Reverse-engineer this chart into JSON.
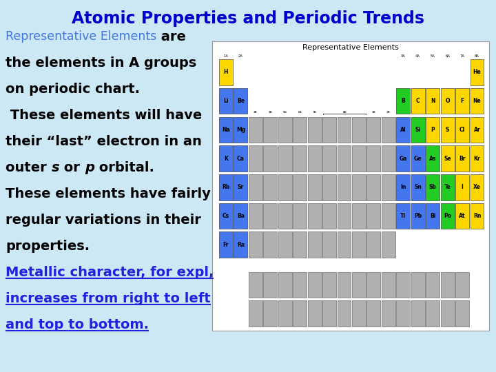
{
  "title": "Atomic Properties and Periodic Trends",
  "title_color": "#0000CC",
  "title_fontsize": 17,
  "background_color": "#cce8f4",
  "text_lines": [
    {
      "parts": [
        {
          "text": "Representative Elements",
          "color": "#4477DD",
          "weight": "normal",
          "style": "normal",
          "size": 12.5
        },
        {
          "text": " are",
          "color": "#000000",
          "weight": "bold",
          "style": "normal",
          "size": 14
        }
      ]
    },
    {
      "parts": [
        {
          "text": "the elements in A groups",
          "color": "#000000",
          "weight": "bold",
          "style": "normal",
          "size": 14
        }
      ]
    },
    {
      "parts": [
        {
          "text": "on periodic chart.",
          "color": "#000000",
          "weight": "bold",
          "style": "normal",
          "size": 14
        }
      ]
    },
    {
      "parts": [
        {
          "text": " These elements will have",
          "color": "#000000",
          "weight": "bold",
          "style": "normal",
          "size": 14
        }
      ]
    },
    {
      "parts": [
        {
          "text": "their “last” electron in an",
          "color": "#000000",
          "weight": "bold",
          "style": "normal",
          "size": 14
        }
      ]
    },
    {
      "parts": [
        {
          "text": "outer ",
          "color": "#000000",
          "weight": "bold",
          "style": "normal",
          "size": 14
        },
        {
          "text": "s",
          "color": "#000000",
          "weight": "bold",
          "style": "italic",
          "size": 14
        },
        {
          "text": " or ",
          "color": "#000000",
          "weight": "bold",
          "style": "normal",
          "size": 14
        },
        {
          "text": "p",
          "color": "#000000",
          "weight": "bold",
          "style": "italic",
          "size": 14
        },
        {
          "text": " orbital.",
          "color": "#000000",
          "weight": "bold",
          "style": "normal",
          "size": 14
        }
      ]
    },
    {
      "parts": [
        {
          "text": "These elements have fairly",
          "color": "#000000",
          "weight": "bold",
          "style": "normal",
          "size": 14
        }
      ]
    },
    {
      "parts": [
        {
          "text": "regular variations in their",
          "color": "#000000",
          "weight": "bold",
          "style": "normal",
          "size": 14
        }
      ]
    },
    {
      "parts": [
        {
          "text": "properties.",
          "color": "#000000",
          "weight": "bold",
          "style": "normal",
          "size": 14
        }
      ]
    },
    {
      "parts": [
        {
          "text": "Metallic character, for expl,",
          "color": "#2222DD",
          "weight": "bold",
          "style": "normal",
          "size": 14,
          "underline": true
        }
      ]
    },
    {
      "parts": [
        {
          "text": "increases from right to left",
          "color": "#2222DD",
          "weight": "bold",
          "style": "normal",
          "size": 14,
          "underline": true
        }
      ]
    },
    {
      "parts": [
        {
          "text": "and top to bottom.",
          "color": "#2222DD",
          "weight": "bold",
          "style": "normal",
          "size": 14,
          "underline": true
        }
      ]
    }
  ],
  "ptable": {
    "title": "Representative Elements",
    "colors": {
      "yellow": "#FFD700",
      "blue": "#4477EE",
      "green": "#22CC22",
      "gray": "#B0B0B0",
      "white": "#FFFFFF"
    },
    "elements": [
      {
        "symbol": "H",
        "row": 0,
        "col": 0,
        "color": "yellow"
      },
      {
        "symbol": "He",
        "row": 0,
        "col": 17,
        "color": "yellow"
      },
      {
        "symbol": "Li",
        "row": 1,
        "col": 0,
        "color": "blue"
      },
      {
        "symbol": "Be",
        "row": 1,
        "col": 1,
        "color": "blue"
      },
      {
        "symbol": "B",
        "row": 1,
        "col": 12,
        "color": "green"
      },
      {
        "symbol": "C",
        "row": 1,
        "col": 13,
        "color": "yellow"
      },
      {
        "symbol": "N",
        "row": 1,
        "col": 14,
        "color": "yellow"
      },
      {
        "symbol": "O",
        "row": 1,
        "col": 15,
        "color": "yellow"
      },
      {
        "symbol": "F",
        "row": 1,
        "col": 16,
        "color": "yellow"
      },
      {
        "symbol": "Ne",
        "row": 1,
        "col": 17,
        "color": "yellow"
      },
      {
        "symbol": "Na",
        "row": 2,
        "col": 0,
        "color": "blue"
      },
      {
        "symbol": "Mg",
        "row": 2,
        "col": 1,
        "color": "blue"
      },
      {
        "symbol": "Al",
        "row": 2,
        "col": 12,
        "color": "blue"
      },
      {
        "symbol": "Si",
        "row": 2,
        "col": 13,
        "color": "green"
      },
      {
        "symbol": "P",
        "row": 2,
        "col": 14,
        "color": "yellow"
      },
      {
        "symbol": "S",
        "row": 2,
        "col": 15,
        "color": "yellow"
      },
      {
        "symbol": "Cl",
        "row": 2,
        "col": 16,
        "color": "yellow"
      },
      {
        "symbol": "Ar",
        "row": 2,
        "col": 17,
        "color": "yellow"
      },
      {
        "symbol": "K",
        "row": 3,
        "col": 0,
        "color": "blue"
      },
      {
        "symbol": "Ca",
        "row": 3,
        "col": 1,
        "color": "blue"
      },
      {
        "symbol": "Ga",
        "row": 3,
        "col": 12,
        "color": "blue"
      },
      {
        "symbol": "Ge",
        "row": 3,
        "col": 13,
        "color": "blue"
      },
      {
        "symbol": "As",
        "row": 3,
        "col": 14,
        "color": "green"
      },
      {
        "symbol": "Se",
        "row": 3,
        "col": 15,
        "color": "yellow"
      },
      {
        "symbol": "Br",
        "row": 3,
        "col": 16,
        "color": "yellow"
      },
      {
        "symbol": "Kr",
        "row": 3,
        "col": 17,
        "color": "yellow"
      },
      {
        "symbol": "Rb",
        "row": 4,
        "col": 0,
        "color": "blue"
      },
      {
        "symbol": "Sr",
        "row": 4,
        "col": 1,
        "color": "blue"
      },
      {
        "symbol": "In",
        "row": 4,
        "col": 12,
        "color": "blue"
      },
      {
        "symbol": "Sn",
        "row": 4,
        "col": 13,
        "color": "blue"
      },
      {
        "symbol": "Sb",
        "row": 4,
        "col": 14,
        "color": "green"
      },
      {
        "symbol": "Te",
        "row": 4,
        "col": 15,
        "color": "green"
      },
      {
        "symbol": "I",
        "row": 4,
        "col": 16,
        "color": "yellow"
      },
      {
        "symbol": "Xe",
        "row": 4,
        "col": 17,
        "color": "yellow"
      },
      {
        "symbol": "Cs",
        "row": 5,
        "col": 0,
        "color": "blue"
      },
      {
        "symbol": "Ba",
        "row": 5,
        "col": 1,
        "color": "blue"
      },
      {
        "symbol": "Tl",
        "row": 5,
        "col": 12,
        "color": "blue"
      },
      {
        "symbol": "Pb",
        "row": 5,
        "col": 13,
        "color": "blue"
      },
      {
        "symbol": "Bi",
        "row": 5,
        "col": 14,
        "color": "blue"
      },
      {
        "symbol": "Po",
        "row": 5,
        "col": 15,
        "color": "green"
      },
      {
        "symbol": "At",
        "row": 5,
        "col": 16,
        "color": "yellow"
      },
      {
        "symbol": "Rn",
        "row": 5,
        "col": 17,
        "color": "yellow"
      },
      {
        "symbol": "Fr",
        "row": 6,
        "col": 0,
        "color": "blue"
      },
      {
        "symbol": "Ra",
        "row": 6,
        "col": 1,
        "color": "blue"
      }
    ]
  }
}
